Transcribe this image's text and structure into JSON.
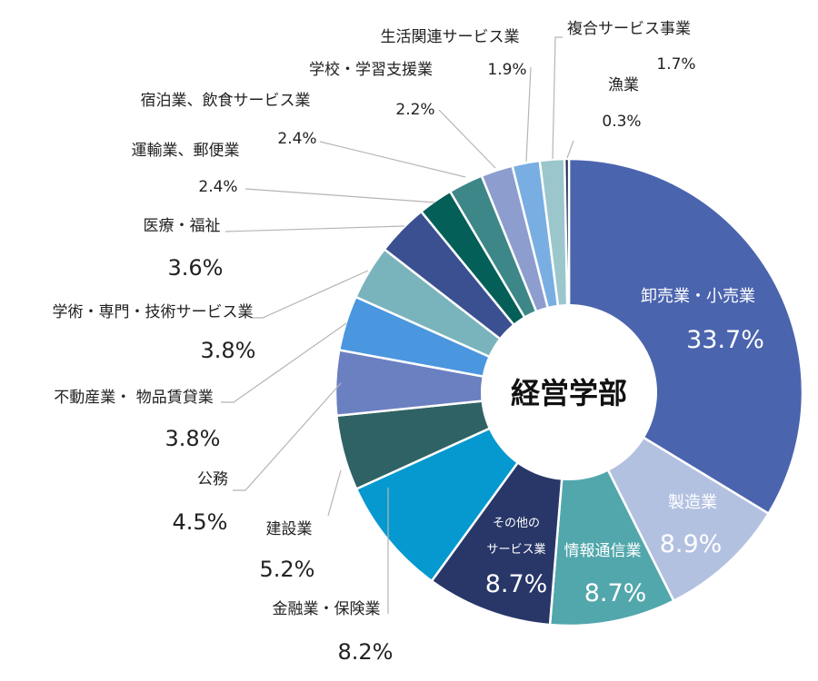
{
  "chart_data": {
    "type": "pie",
    "variant": "donut",
    "center_label": "経営学部",
    "unit": "%",
    "slices": [
      {
        "label": "卸売業・小売業",
        "value": 33.7,
        "value_text": "33.7%",
        "color": "#4B64AE"
      },
      {
        "label": "製造業",
        "value": 8.9,
        "value_text": "8.9%",
        "color": "#B3C1E1"
      },
      {
        "label": "情報通信業",
        "value": 8.7,
        "value_text": "8.7%",
        "color": "#52A7AC"
      },
      {
        "label_lines": [
          "その他の",
          "サービス業"
        ],
        "value": 8.7,
        "value_text": "8.7%",
        "color": "#283768"
      },
      {
        "label": "金融業・保険業",
        "value": 8.2,
        "value_text": "8.2%",
        "color": "#0699CF"
      },
      {
        "label": "建設業",
        "value": 5.2,
        "value_text": "5.2%",
        "color": "#2F6264"
      },
      {
        "label": "公務",
        "value": 4.5,
        "value_text": "4.5%",
        "color": "#6B80C1"
      },
      {
        "label": "不動産業・ 物品賃貸業",
        "value": 3.8,
        "value_text": "3.8%",
        "color": "#4A96DF"
      },
      {
        "label": "学術・専門・技術サービス業",
        "value": 3.8,
        "value_text": "3.8%",
        "color": "#79B4BC"
      },
      {
        "label": "医療・福祉",
        "value": 3.6,
        "value_text": "3.6%",
        "color": "#3A5090"
      },
      {
        "label": "運輸業、郵便業",
        "value": 2.4,
        "value_text": "2.4%",
        "color": "#035F58"
      },
      {
        "label": "宿泊業、飲食サービス業",
        "value": 2.4,
        "value_text": "2.4%",
        "color": "#3E8788"
      },
      {
        "label": "学校・学習支援業",
        "value": 2.2,
        "value_text": "2.2%",
        "color": "#8D9DCE"
      },
      {
        "label": "生活関連サービス業",
        "value": 1.9,
        "value_text": "1.9%",
        "color": "#79AEE2"
      },
      {
        "label": "複合サービス事業",
        "value": 1.7,
        "value_text": "1.7%",
        "color": "#9BC7CC"
      },
      {
        "label": "漁業",
        "value": 0.3,
        "value_text": "0.3%",
        "color": "#1E2B4E"
      }
    ]
  }
}
